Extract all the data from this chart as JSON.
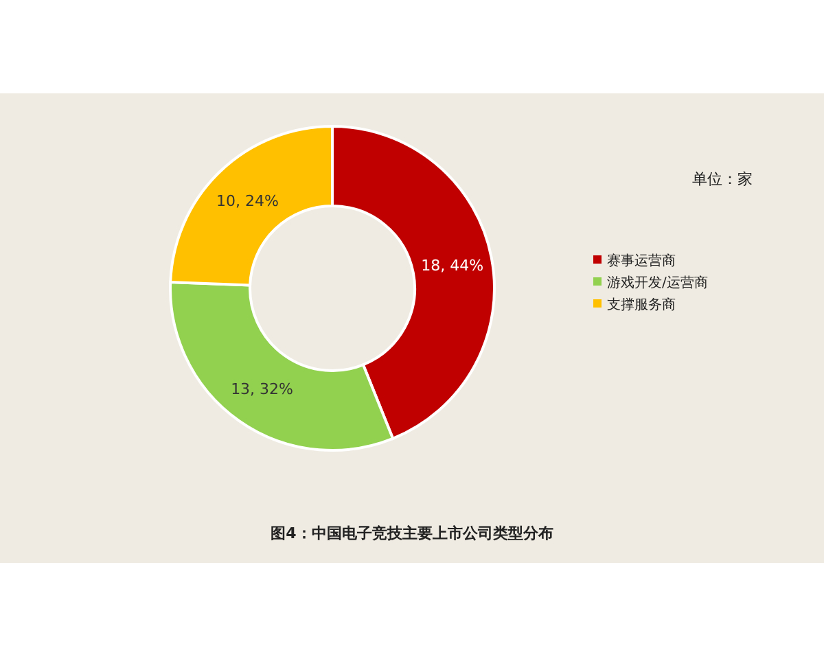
{
  "chart_data": {
    "type": "donut",
    "title": "图4：中国电子竞技主要上市公司类型分布",
    "annotations": [
      "单位：家"
    ],
    "categories": [
      "赛事运营商",
      "游戏开发/运营商",
      "支撑服务商"
    ],
    "values": [
      18,
      13,
      10
    ],
    "colors": [
      "#c00000",
      "#92d050",
      "#ffc000"
    ],
    "value_labels": [
      "18, 44%",
      "13, 32%",
      "10, 24%"
    ],
    "legend": "right"
  }
}
